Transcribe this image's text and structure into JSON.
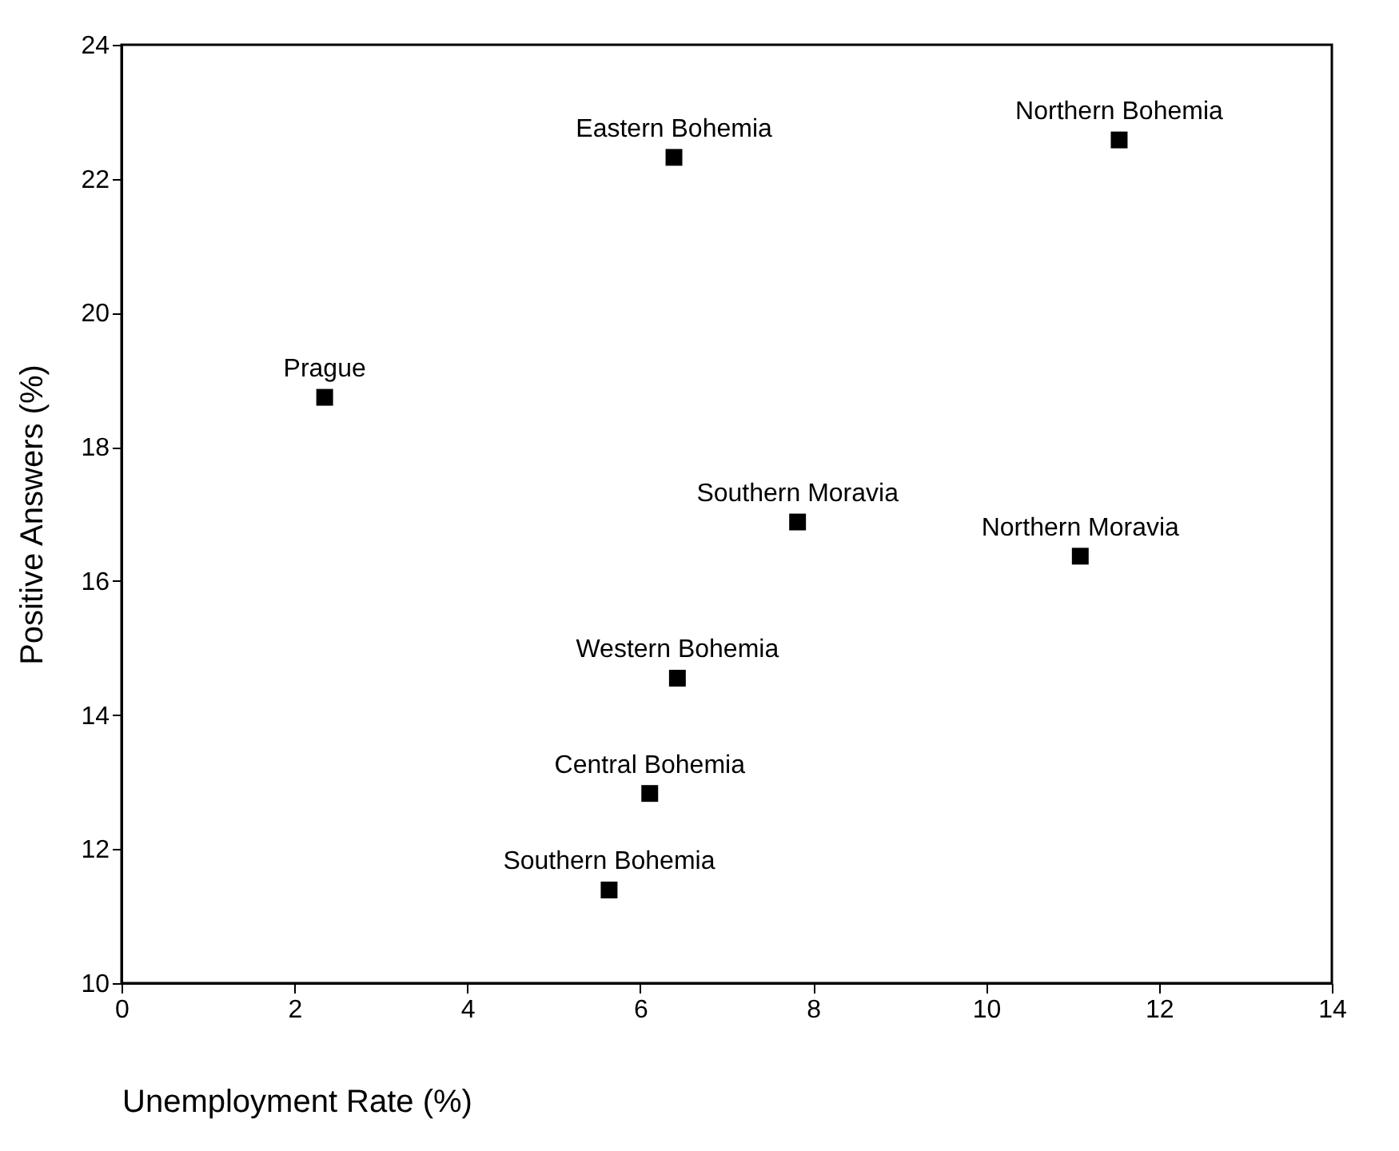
{
  "chart_data": {
    "type": "scatter",
    "xlabel": "Unemployment Rate (%)",
    "ylabel": "Positive Answers (%)",
    "xlim": [
      0,
      14
    ],
    "xticks": [
      0,
      2,
      4,
      6,
      8,
      10,
      12,
      14
    ],
    "ylim": [
      10,
      24
    ],
    "yticks": [
      10,
      12,
      14,
      16,
      18,
      20,
      22,
      24
    ],
    "marker": "square",
    "grid": false,
    "legend": false,
    "series": [
      {
        "name": "Prague",
        "color": "#000000",
        "x": [
          2.35
        ],
        "values": [
          18.74
        ]
      },
      {
        "name": "Eastern Bohemia",
        "color": "#000000",
        "x": [
          6.39
        ],
        "values": [
          22.32
        ]
      },
      {
        "name": "Northern Bohemia",
        "color": "#000000",
        "x": [
          11.54
        ],
        "values": [
          22.58
        ]
      },
      {
        "name": "Southern Moravia",
        "color": "#000000",
        "x": [
          7.82
        ],
        "values": [
          16.88
        ]
      },
      {
        "name": "Northern Moravia",
        "color": "#000000",
        "x": [
          11.09
        ],
        "values": [
          16.37
        ]
      },
      {
        "name": "Western Bohemia",
        "color": "#000000",
        "x": [
          6.43
        ],
        "values": [
          14.55
        ]
      },
      {
        "name": "Central Bohemia",
        "color": "#000000",
        "x": [
          6.11
        ],
        "values": [
          12.83
        ]
      },
      {
        "name": "Southern Bohemia",
        "color": "#000000",
        "x": [
          5.64
        ],
        "values": [
          11.39
        ]
      }
    ]
  }
}
